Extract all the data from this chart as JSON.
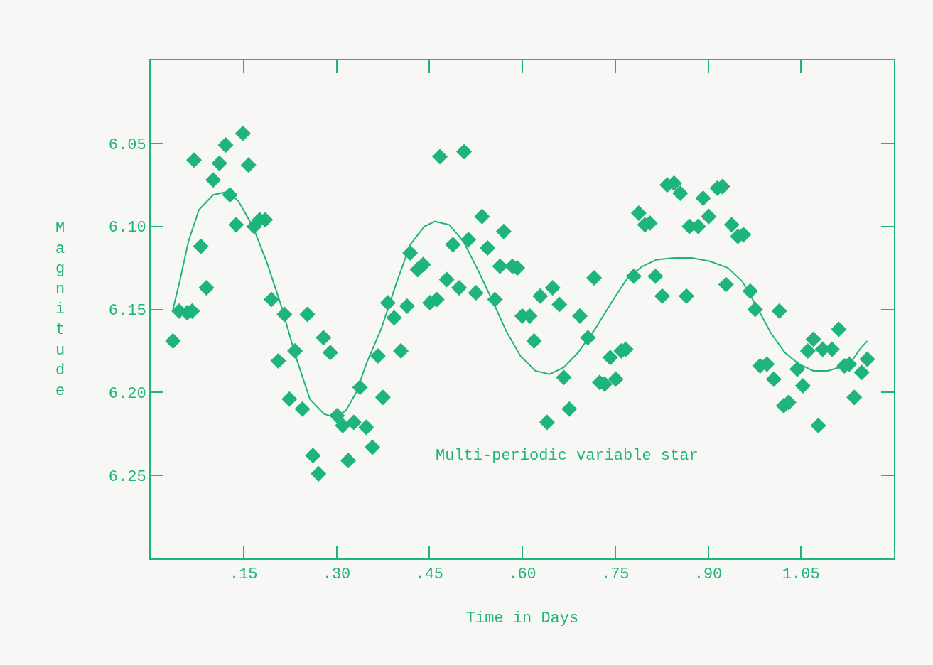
{
  "chart_data": {
    "type": "scatter",
    "xlabel": "Time in Days",
    "ylabel": "Magnitude",
    "annotations": [
      "Multi-periodic variable star"
    ],
    "xlim": [
      0,
      1.2
    ],
    "ylim": [
      6.3,
      6.0
    ],
    "xticks": [
      {
        "value": 0.15,
        "label": ".15"
      },
      {
        "value": 0.3,
        "label": ".30"
      },
      {
        "value": 0.45,
        "label": ".45"
      },
      {
        "value": 0.6,
        "label": ".60"
      },
      {
        "value": 0.75,
        "label": ".75"
      },
      {
        "value": 0.9,
        "label": ".90"
      },
      {
        "value": 1.05,
        "label": "1.05"
      }
    ],
    "yticks": [
      {
        "value": 6.05,
        "label": "6.05"
      },
      {
        "value": 6.1,
        "label": "6.10"
      },
      {
        "value": 6.15,
        "label": "6.15"
      },
      {
        "value": 6.2,
        "label": "6.20"
      },
      {
        "value": 6.25,
        "label": "6.25"
      }
    ],
    "grid": false,
    "marker": "diamond",
    "series": [
      {
        "color": "#1fb57a",
        "x": [
          0.036,
          0.046,
          0.059,
          0.067,
          0.07,
          0.081,
          0.09,
          0.101,
          0.111,
          0.121,
          0.128,
          0.138,
          0.149,
          0.158,
          0.167,
          0.176,
          0.185,
          0.195,
          0.206,
          0.216,
          0.224,
          0.233,
          0.245,
          0.253,
          0.262,
          0.271,
          0.279,
          0.29,
          0.301,
          0.31,
          0.319,
          0.328,
          0.338,
          0.348,
          0.358,
          0.367,
          0.375,
          0.383,
          0.393,
          0.404,
          0.414,
          0.419,
          0.431,
          0.44,
          0.451,
          0.462,
          0.467,
          0.478,
          0.488,
          0.498,
          0.506,
          0.513,
          0.525,
          0.535,
          0.544,
          0.556,
          0.564,
          0.57,
          0.584,
          0.592,
          0.6,
          0.612,
          0.619,
          0.629,
          0.64,
          0.649,
          0.66,
          0.667,
          0.676,
          0.693,
          0.706,
          0.716,
          0.725,
          0.733,
          0.742,
          0.751,
          0.76,
          0.767,
          0.78,
          0.788,
          0.798,
          0.806,
          0.815,
          0.826,
          0.834,
          0.845,
          0.855,
          0.865,
          0.87,
          0.884,
          0.892,
          0.901,
          0.915,
          0.923,
          0.929,
          0.938,
          0.948,
          0.957,
          0.968,
          0.976,
          0.984,
          0.995,
          1.006,
          1.015,
          1.022,
          1.03,
          1.044,
          1.053,
          1.061,
          1.07,
          1.078,
          1.085,
          1.1,
          1.111,
          1.12,
          1.128,
          1.136,
          1.148,
          1.157
        ],
        "values": [
          6.169,
          6.151,
          6.152,
          6.151,
          6.06,
          6.112,
          6.137,
          6.072,
          6.062,
          6.051,
          6.081,
          6.099,
          6.044,
          6.063,
          6.1,
          6.096,
          6.096,
          6.144,
          6.181,
          6.153,
          6.204,
          6.175,
          6.21,
          6.153,
          6.238,
          6.249,
          6.167,
          6.176,
          6.214,
          6.22,
          6.241,
          6.218,
          6.197,
          6.221,
          6.233,
          6.178,
          6.203,
          6.146,
          6.155,
          6.175,
          6.148,
          6.116,
          6.126,
          6.123,
          6.146,
          6.144,
          6.058,
          6.132,
          6.111,
          6.137,
          6.055,
          6.108,
          6.14,
          6.094,
          6.113,
          6.144,
          6.124,
          6.103,
          6.124,
          6.125,
          6.154,
          6.154,
          6.169,
          6.142,
          6.218,
          6.137,
          6.147,
          6.191,
          6.21,
          6.154,
          6.167,
          6.131,
          6.194,
          6.195,
          6.179,
          6.192,
          6.175,
          6.174,
          6.13,
          6.092,
          6.099,
          6.098,
          6.13,
          6.142,
          6.075,
          6.074,
          6.08,
          6.142,
          6.1,
          6.1,
          6.083,
          6.094,
          6.077,
          6.076,
          6.135,
          6.099,
          6.106,
          6.105,
          6.139,
          6.15,
          6.184,
          6.183,
          6.192,
          6.151,
          6.208,
          6.206,
          6.186,
          6.196,
          6.175,
          6.168,
          6.22,
          6.174,
          6.174,
          6.162,
          6.184,
          6.183,
          6.203,
          6.188,
          6.18
        ]
      },
      {
        "type": "line",
        "color": "#1fb57a",
        "marker": "none",
        "x": [
          0.036,
          0.047,
          0.061,
          0.078,
          0.101,
          0.125,
          0.142,
          0.165,
          0.188,
          0.211,
          0.234,
          0.257,
          0.28,
          0.298,
          0.315,
          0.332,
          0.349,
          0.373,
          0.396,
          0.419,
          0.442,
          0.459,
          0.482,
          0.505,
          0.528,
          0.551,
          0.574,
          0.597,
          0.621,
          0.644,
          0.667,
          0.69,
          0.719,
          0.747,
          0.77,
          0.794,
          0.817,
          0.845,
          0.874,
          0.903,
          0.932,
          0.955,
          0.978,
          1.001,
          1.024,
          1.047,
          1.07,
          1.093,
          1.111,
          1.134,
          1.145,
          1.157
        ],
        "values": [
          6.15,
          6.133,
          6.109,
          6.09,
          6.081,
          6.079,
          6.085,
          6.1,
          6.122,
          6.148,
          6.178,
          6.204,
          6.213,
          6.215,
          6.211,
          6.2,
          6.182,
          6.161,
          6.135,
          6.111,
          6.1,
          6.097,
          6.099,
          6.109,
          6.126,
          6.144,
          6.163,
          6.178,
          6.187,
          6.189,
          6.185,
          6.176,
          6.161,
          6.144,
          6.131,
          6.124,
          6.12,
          6.119,
          6.119,
          6.121,
          6.125,
          6.133,
          6.148,
          6.164,
          6.176,
          6.183,
          6.187,
          6.187,
          6.185,
          6.18,
          6.174,
          6.169
        ]
      }
    ]
  }
}
